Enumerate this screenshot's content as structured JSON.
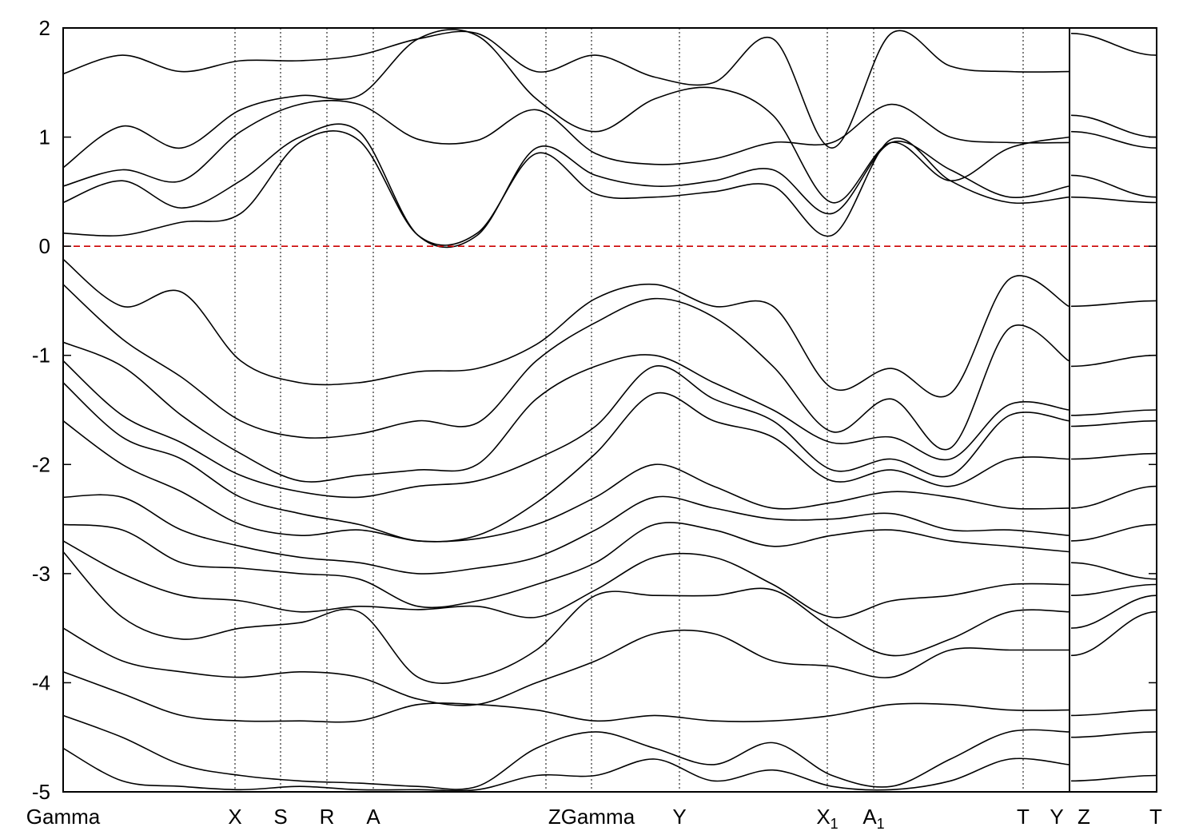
{
  "chart_data": {
    "type": "line",
    "title": "",
    "xlabel": "",
    "ylabel": "",
    "ylim": [
      -5,
      2
    ],
    "yticks": [
      2,
      1,
      0,
      -1,
      -2,
      -3,
      -4,
      -5
    ],
    "fermi_level": 0,
    "kpath_labels": [
      {
        "text": "Gamma",
        "sub": ""
      },
      {
        "text": "X",
        "sub": ""
      },
      {
        "text": "S",
        "sub": ""
      },
      {
        "text": "R",
        "sub": ""
      },
      {
        "text": "A",
        "sub": ""
      },
      {
        "text": "ZGamma",
        "sub": ""
      },
      {
        "text": "Y",
        "sub": ""
      },
      {
        "text": "X",
        "sub": "1"
      },
      {
        "text": "A",
        "sub": "1"
      },
      {
        "text": "T",
        "sub": ""
      },
      {
        "text": "Y",
        "sub": ""
      },
      {
        "text": "Z",
        "sub": ""
      },
      {
        "text": "T",
        "sub": ""
      }
    ],
    "colors": {
      "bands": "#000000",
      "fermi": "#cc0000",
      "frame": "#000000"
    },
    "grid": "vertical dotted lines at high-symmetry points",
    "series": [
      {
        "values": [
          0.12,
          0.1,
          0.22,
          0.3,
          0.95,
          0.97,
          0.1,
          0.12,
          0.85,
          0.48,
          0.45,
          0.5,
          0.55,
          0.1,
          0.98,
          0.6,
          0.4,
          0.45,
          0.45,
          0.4
        ]
      },
      {
        "values": [
          0.4,
          0.6,
          0.35,
          0.6,
          1.0,
          1.05,
          0.1,
          0.1,
          0.9,
          0.65,
          0.55,
          0.6,
          0.7,
          0.3,
          0.95,
          0.7,
          0.45,
          0.55,
          0.65,
          0.45
        ]
      },
      {
        "values": [
          0.55,
          0.7,
          0.6,
          1.05,
          1.3,
          1.3,
          0.98,
          0.97,
          1.25,
          0.85,
          0.75,
          0.8,
          0.95,
          0.95,
          1.3,
          1.0,
          0.95,
          0.95,
          1.05,
          0.9
        ]
      },
      {
        "values": [
          0.72,
          1.1,
          0.9,
          1.25,
          1.38,
          1.38,
          1.9,
          1.93,
          1.35,
          1.05,
          1.35,
          1.45,
          1.2,
          0.4,
          0.95,
          0.6,
          0.9,
          1.0,
          1.2,
          1.0
        ]
      },
      {
        "values": [
          1.58,
          1.75,
          1.6,
          1.7,
          1.7,
          1.75,
          1.9,
          1.95,
          1.6,
          1.75,
          1.55,
          1.5,
          1.9,
          0.9,
          1.95,
          1.65,
          1.6,
          1.6,
          1.95,
          1.75
        ]
      },
      {
        "values": [
          -0.12,
          -0.55,
          -0.42,
          -1.05,
          -1.25,
          -1.25,
          -1.15,
          -1.12,
          -0.9,
          -0.48,
          -0.35,
          -0.55,
          -0.55,
          -1.3,
          -1.12,
          -1.35,
          -0.3,
          -0.55,
          -0.55,
          -0.5
        ]
      },
      {
        "values": [
          -0.35,
          -0.85,
          -1.2,
          -1.6,
          -1.75,
          -1.72,
          -1.6,
          -1.62,
          -1.05,
          -0.7,
          -0.48,
          -0.65,
          -1.1,
          -1.7,
          -1.4,
          -1.85,
          -0.75,
          -1.05,
          -1.1,
          -1.0
        ]
      },
      {
        "values": [
          -0.88,
          -1.1,
          -1.55,
          -1.9,
          -2.15,
          -2.1,
          -2.05,
          -2.0,
          -1.4,
          -1.1,
          -1.0,
          -1.25,
          -1.5,
          -1.8,
          -1.75,
          -1.95,
          -1.45,
          -1.5,
          -1.55,
          -1.5
        ]
      },
      {
        "values": [
          -1.05,
          -1.55,
          -1.8,
          -2.1,
          -2.25,
          -2.3,
          -2.2,
          -2.15,
          -1.95,
          -1.65,
          -1.1,
          -1.4,
          -1.6,
          -2.05,
          -1.95,
          -2.1,
          -1.55,
          -1.6,
          -1.65,
          -1.6
        ]
      },
      {
        "values": [
          -1.25,
          -1.75,
          -1.95,
          -2.3,
          -2.45,
          -2.55,
          -2.7,
          -2.65,
          -2.35,
          -1.9,
          -1.35,
          -1.6,
          -1.75,
          -2.15,
          -2.05,
          -2.2,
          -1.95,
          -1.95,
          -1.95,
          -1.9
        ]
      },
      {
        "values": [
          -1.6,
          -2.0,
          -2.25,
          -2.55,
          -2.65,
          -2.6,
          -2.7,
          -2.68,
          -2.55,
          -2.3,
          -2.0,
          -2.2,
          -2.4,
          -2.35,
          -2.25,
          -2.3,
          -2.4,
          -2.4,
          -2.4,
          -2.2
        ]
      },
      {
        "values": [
          -2.3,
          -2.3,
          -2.6,
          -2.75,
          -2.85,
          -2.9,
          -3.0,
          -2.95,
          -2.85,
          -2.6,
          -2.3,
          -2.4,
          -2.5,
          -2.5,
          -2.45,
          -2.6,
          -2.6,
          -2.65,
          -2.7,
          -2.55
        ]
      },
      {
        "values": [
          -2.55,
          -2.6,
          -2.9,
          -2.95,
          -3.0,
          -3.05,
          -3.3,
          -3.25,
          -3.1,
          -2.9,
          -2.55,
          -2.6,
          -2.75,
          -2.65,
          -2.6,
          -2.7,
          -2.75,
          -2.8,
          -2.9,
          -3.05
        ]
      },
      {
        "values": [
          -2.7,
          -3.0,
          -3.2,
          -3.25,
          -3.35,
          -3.3,
          -3.33,
          -3.3,
          -3.4,
          -3.15,
          -2.85,
          -2.85,
          -3.1,
          -3.4,
          -3.25,
          -3.2,
          -3.1,
          -3.1,
          -3.2,
          -3.1
        ]
      },
      {
        "values": [
          -2.8,
          -3.4,
          -3.6,
          -3.5,
          -3.45,
          -3.35,
          -3.95,
          -3.95,
          -3.7,
          -3.2,
          -3.2,
          -3.2,
          -3.15,
          -3.5,
          -3.75,
          -3.6,
          -3.35,
          -3.35,
          -3.5,
          -3.2
        ]
      },
      {
        "values": [
          -3.5,
          -3.8,
          -3.9,
          -3.95,
          -3.9,
          -3.95,
          -4.15,
          -4.2,
          -4.0,
          -3.8,
          -3.55,
          -3.55,
          -3.8,
          -3.85,
          -3.95,
          -3.7,
          -3.7,
          -3.7,
          -3.75,
          -3.35
        ]
      },
      {
        "values": [
          -3.9,
          -4.1,
          -4.3,
          -4.35,
          -4.35,
          -4.35,
          -4.2,
          -4.2,
          -4.25,
          -4.35,
          -4.3,
          -4.35,
          -4.35,
          -4.3,
          -4.2,
          -4.2,
          -4.25,
          -4.25,
          -4.3,
          -4.25
        ]
      },
      {
        "values": [
          -4.3,
          -4.5,
          -4.75,
          -4.85,
          -4.9,
          -4.92,
          -4.95,
          -4.95,
          -4.6,
          -4.45,
          -4.6,
          -4.75,
          -4.55,
          -4.85,
          -4.95,
          -4.7,
          -4.45,
          -4.45,
          -4.5,
          -4.45
        ]
      },
      {
        "values": [
          -4.6,
          -4.9,
          -4.95,
          -4.98,
          -4.95,
          -4.98,
          -4.98,
          -4.98,
          -4.85,
          -4.85,
          -4.7,
          -4.9,
          -4.8,
          -4.95,
          -4.98,
          -4.9,
          -4.7,
          -4.75,
          -4.9,
          -4.85
        ]
      }
    ]
  }
}
